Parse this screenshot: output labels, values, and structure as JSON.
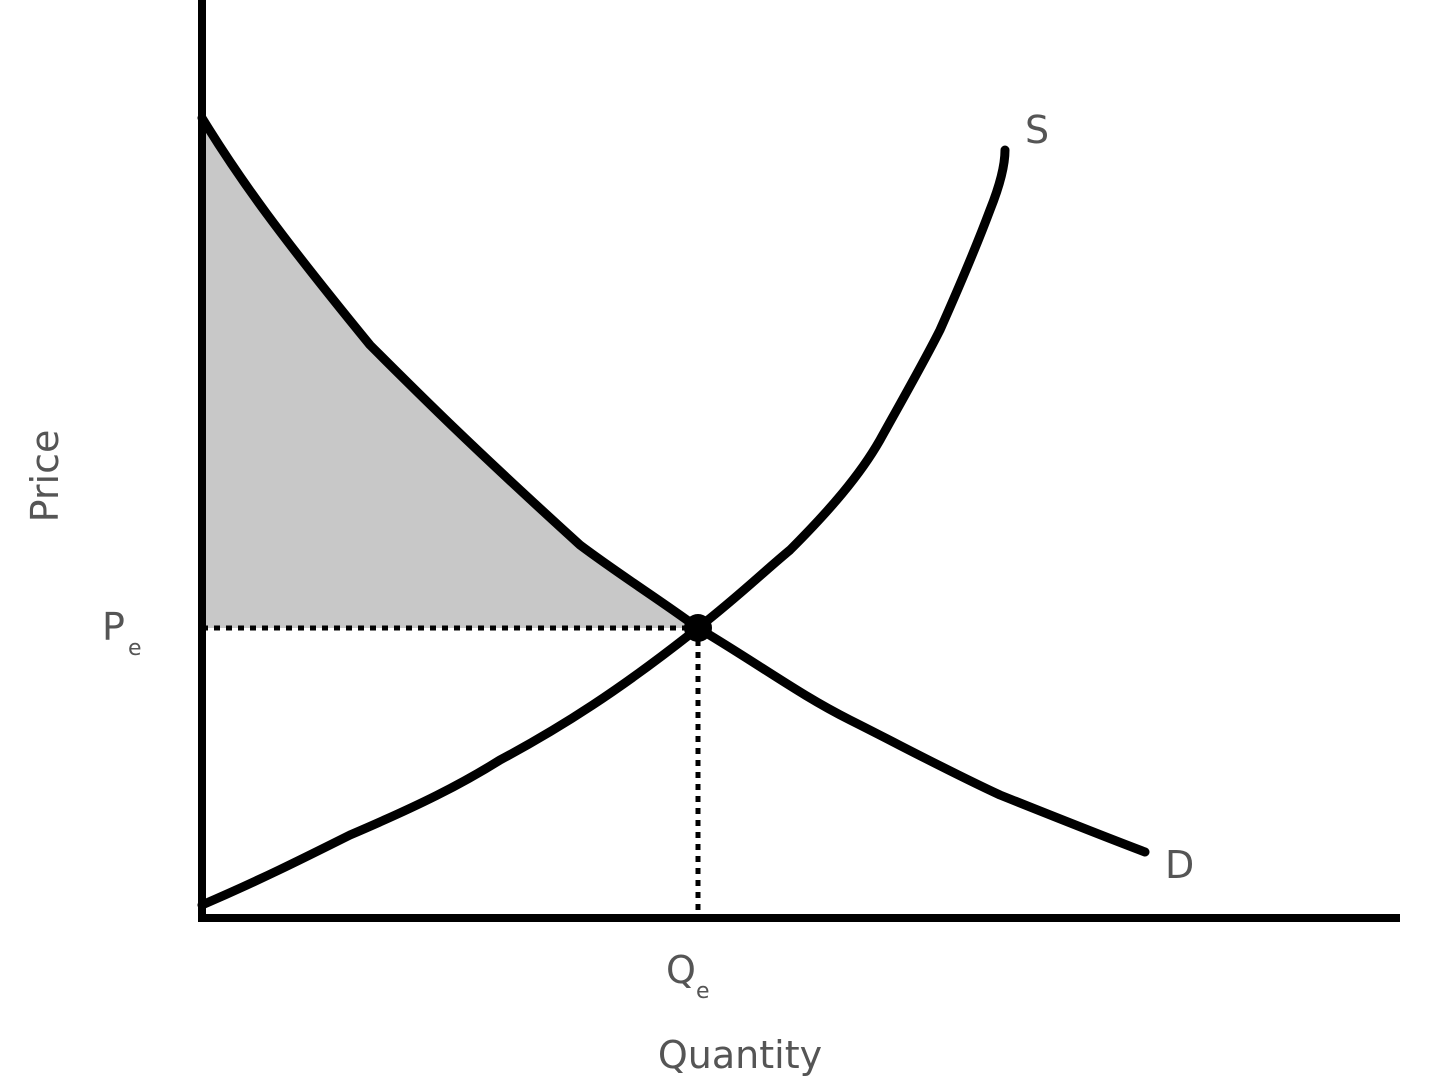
{
  "diagram": {
    "y_axis_label": "Price",
    "x_axis_label": "Quantity",
    "supply_label": "S",
    "demand_label": "D",
    "price_label": "P",
    "price_subscript": "e",
    "quantity_label": "Q",
    "quantity_subscript": "e",
    "shaded_region": "area above equilibrium price under the demand curve",
    "colors": {
      "curve": "#000000",
      "shade": "#c8c8c8",
      "text": "#555555"
    }
  }
}
